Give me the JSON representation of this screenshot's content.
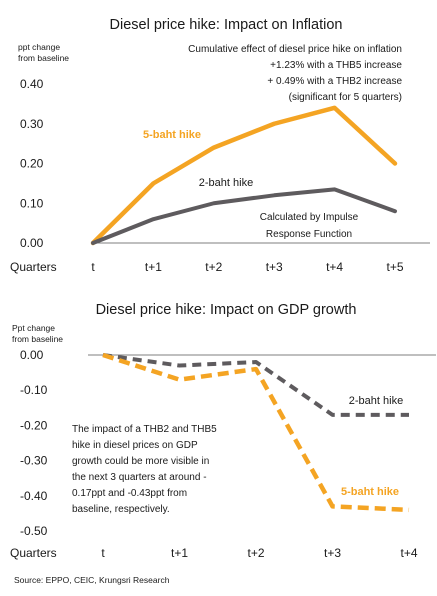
{
  "source": "Source: EPPO, CEIC, Krungsri Research",
  "colors": {
    "five_baht": "#F4A423",
    "two_baht": "#5E5B5E",
    "axis": "#7F7F7F"
  },
  "chart_data": [
    {
      "type": "line",
      "title": "Diesel price hike: Impact on Inflation",
      "ylabel": "ppt change\nfrom baseline",
      "ylabel_lines": [
        "ppt change",
        "from baseline"
      ],
      "xlabel": "Quarters",
      "categories": [
        "t",
        "t+1",
        "t+2",
        "t+3",
        "t+4",
        "t+5"
      ],
      "ylim": [
        0,
        0.4
      ],
      "yticks": [
        "0.00",
        "0.10",
        "0.20",
        "0.30",
        "0.40"
      ],
      "line_style": "solid",
      "series": [
        {
          "name": "5-baht hike",
          "values": [
            0.0,
            0.15,
            0.24,
            0.3,
            0.34,
            0.2
          ]
        },
        {
          "name": "2-baht hike",
          "values": [
            0.0,
            0.06,
            0.1,
            0.12,
            0.135,
            0.08
          ]
        }
      ],
      "annotations": {
        "note": [
          "Cumulative effect of diesel price hike on inflation",
          "+1.23% with a THB5 increase",
          "+ 0.49% with a THB2 increase",
          "(significant for 5 quarters)"
        ],
        "method": [
          "Calculated by Impulse",
          "Response Function"
        ]
      }
    },
    {
      "type": "line",
      "title": "Diesel price hike: Impact on GDP growth",
      "ylabel": "Ppt change\nfrom baseline",
      "ylabel_lines": [
        "Ppt change",
        "from baseline"
      ],
      "xlabel": "Quarters",
      "categories": [
        "t",
        "t+1",
        "t+2",
        "t+3",
        "t+4"
      ],
      "ylim": [
        -0.5,
        0
      ],
      "yticks": [
        "0.00",
        "-0.10",
        "-0.20",
        "-0.30",
        "-0.40",
        "-0.50"
      ],
      "line_style": "dashed",
      "series": [
        {
          "name": "5-baht hike",
          "values": [
            0.0,
            -0.07,
            -0.04,
            -0.43,
            -0.44
          ]
        },
        {
          "name": "2-baht hike",
          "values": [
            0.0,
            -0.03,
            -0.02,
            -0.17,
            -0.17
          ]
        }
      ],
      "annotations": {
        "note": [
          "The impact of a THB2 and THB5",
          "hike in diesel prices on GDP",
          "growth could be more visible in",
          "the next 3 quarters at around -",
          "0.17ppt and -0.43ppt from",
          "baseline, respectively."
        ]
      }
    }
  ]
}
